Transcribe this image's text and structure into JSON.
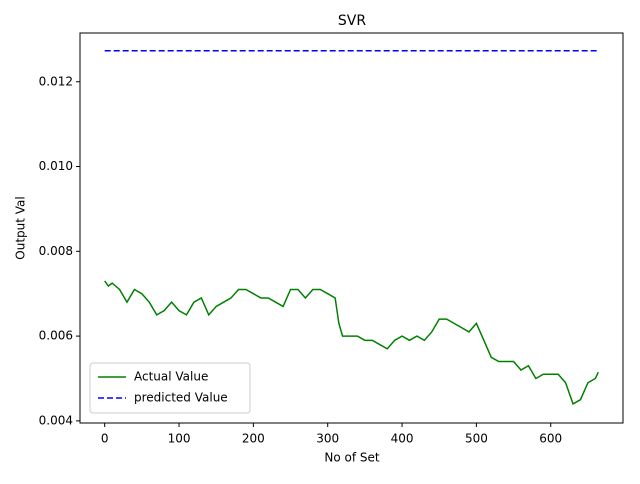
{
  "chart_data": {
    "type": "line",
    "title": "SVR",
    "x_label": "No of Set",
    "y_label": "Output Val",
    "xlim": [
      -33.2,
      697.2
    ],
    "xticks": [
      0,
      100,
      200,
      300,
      400,
      500,
      600
    ],
    "ylim": [
      0.00395,
      0.01315
    ],
    "yticks": [
      {
        "value": 0.004,
        "label": "0.004"
      },
      {
        "value": 0.006,
        "label": "0.006"
      },
      {
        "value": 0.008,
        "label": "0.008"
      },
      {
        "value": 0.01,
        "label": "0.010"
      },
      {
        "value": 0.012,
        "label": "0.012"
      }
    ],
    "legend": "lower left",
    "series": [
      {
        "name": "Actual Value",
        "color": "#008000",
        "style": "solid",
        "x": [
          0,
          5,
          10,
          20,
          30,
          40,
          50,
          60,
          70,
          80,
          90,
          100,
          110,
          120,
          130,
          140,
          150,
          160,
          170,
          180,
          190,
          200,
          210,
          220,
          230,
          240,
          250,
          260,
          270,
          280,
          290,
          300,
          310,
          315,
          320,
          330,
          340,
          350,
          360,
          370,
          380,
          390,
          400,
          410,
          420,
          430,
          440,
          450,
          460,
          470,
          480,
          490,
          500,
          510,
          520,
          530,
          540,
          550,
          560,
          570,
          580,
          590,
          600,
          610,
          620,
          630,
          640,
          650,
          660,
          664
        ],
        "values": [
          0.0073,
          0.00718,
          0.00725,
          0.0071,
          0.0068,
          0.0071,
          0.007,
          0.0068,
          0.0065,
          0.0066,
          0.0068,
          0.0066,
          0.0065,
          0.0068,
          0.0069,
          0.0065,
          0.0067,
          0.0068,
          0.0069,
          0.0071,
          0.0071,
          0.007,
          0.0069,
          0.0069,
          0.0068,
          0.0067,
          0.0071,
          0.0071,
          0.0069,
          0.0071,
          0.0071,
          0.007,
          0.0069,
          0.0063,
          0.006,
          0.006,
          0.006,
          0.0059,
          0.0059,
          0.0058,
          0.0057,
          0.0059,
          0.006,
          0.0059,
          0.006,
          0.0059,
          0.0061,
          0.0064,
          0.0064,
          0.0063,
          0.0062,
          0.0061,
          0.0063,
          0.0059,
          0.0055,
          0.0054,
          0.0054,
          0.0054,
          0.0052,
          0.0053,
          0.005,
          0.0051,
          0.0051,
          0.0051,
          0.0049,
          0.0044,
          0.0045,
          0.0049,
          0.005,
          0.00515
        ]
      },
      {
        "name": "predicted Value",
        "color": "#0000ff",
        "style": "dashed",
        "x": [
          0,
          664
        ],
        "values": [
          0.01273,
          0.01273
        ]
      }
    ]
  }
}
